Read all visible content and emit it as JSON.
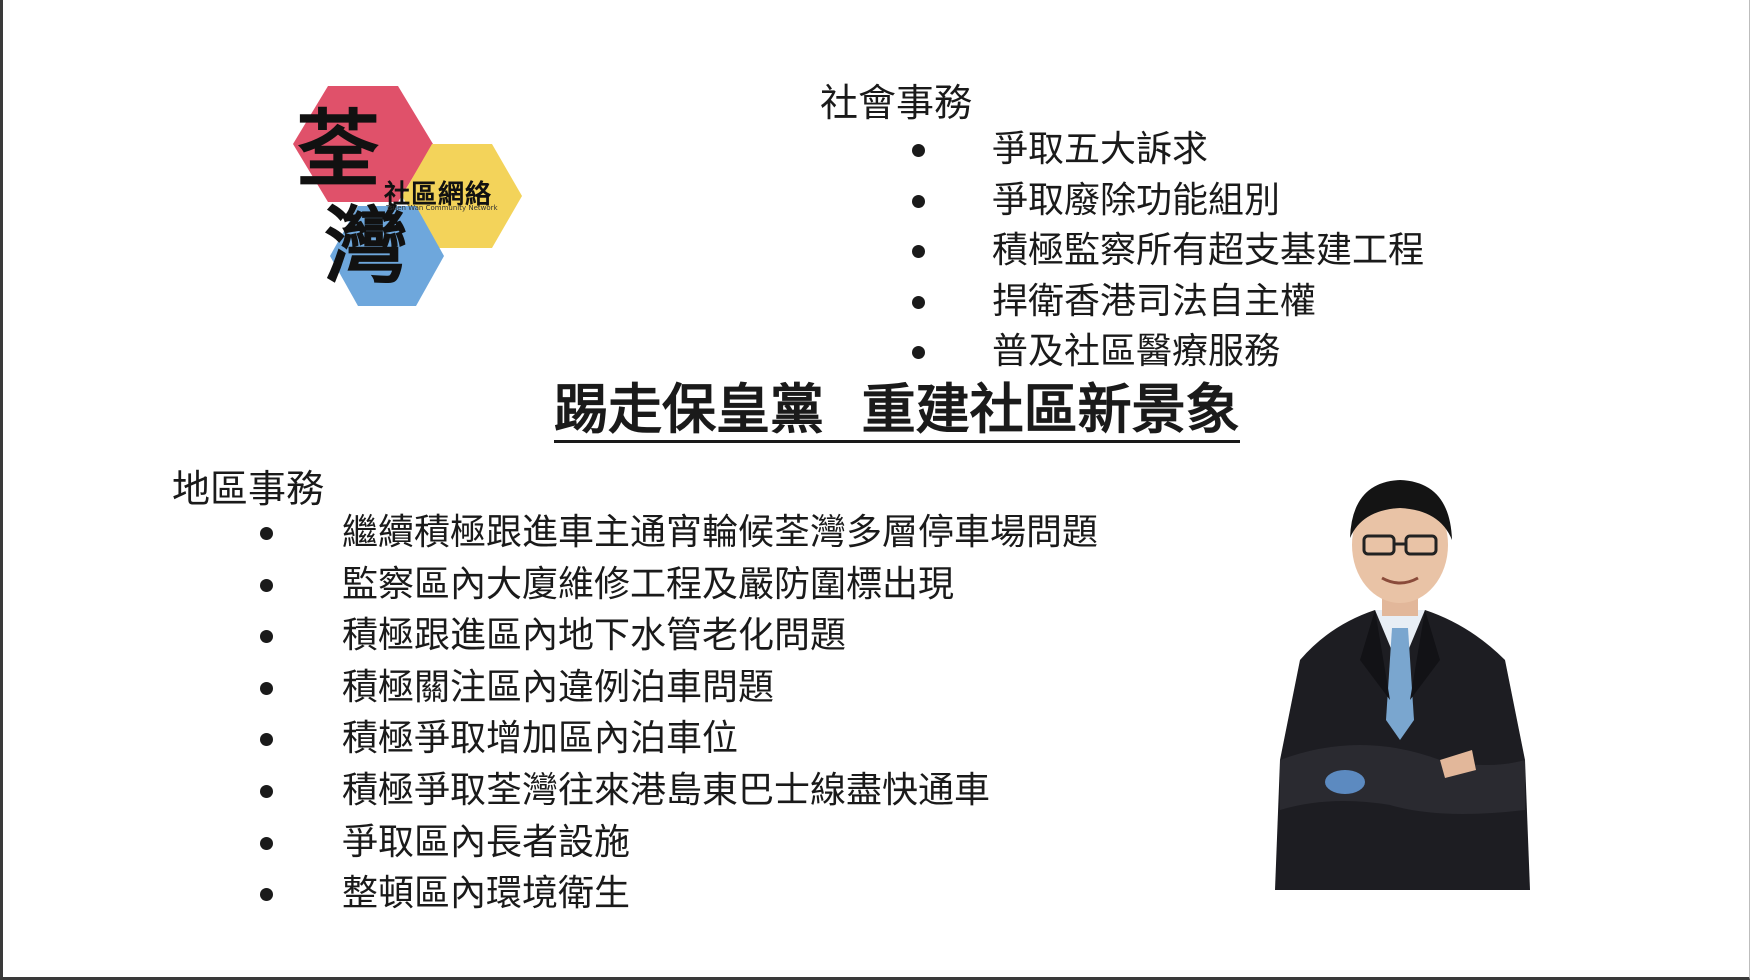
{
  "logo": {
    "char_top": "荃",
    "char_bottom": "灣",
    "subtitle": "社區網絡",
    "english": "Tsuen Wan Community Network",
    "colors": {
      "pink": "#e0516a",
      "yellow": "#f3d35a",
      "blue": "#6ea7dc"
    }
  },
  "social": {
    "title": "社會事務",
    "items": [
      "爭取五大訴求",
      "爭取廢除功能組別",
      "積極監察所有超支基建工程",
      "捍衛香港司法自主權",
      "普及社區醫療服務"
    ]
  },
  "headline": "踢走保皇黨  重建社區新景象",
  "district": {
    "title": "地區事務",
    "items": [
      "繼續積極跟進車主通宵輪候荃灣多層停車場問題",
      "監察區內大廈維修工程及嚴防圍標出現",
      "積極跟進區內地下水管老化問題",
      "積極關注區內違例泊車問題",
      "積極爭取增加區內泊車位",
      "積極爭取荃灣往來港島東巴士線盡快通車",
      "爭取區內長者設施",
      "整頓區內環境衛生"
    ]
  }
}
